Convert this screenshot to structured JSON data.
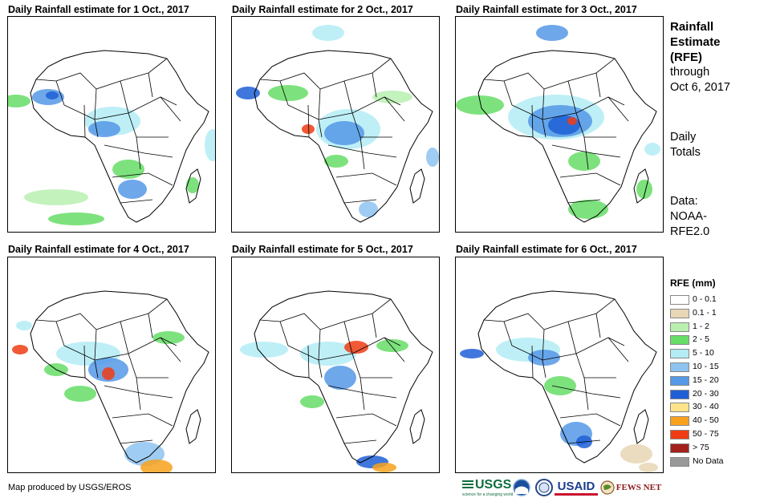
{
  "panels": [
    {
      "title": "Daily Rainfall estimate for 1 Oct., 2017"
    },
    {
      "title": "Daily Rainfall estimate for 2 Oct., 2017"
    },
    {
      "title": "Daily Rainfall estimate for 3 Oct., 2017"
    },
    {
      "title": "Daily Rainfall estimate for 4 Oct., 2017"
    },
    {
      "title": "Daily Rainfall estimate for 5 Oct., 2017"
    },
    {
      "title": "Daily Rainfall estimate for 6 Oct., 2017"
    }
  ],
  "side": {
    "title_line1": "Rainfall",
    "title_line2": "Estimate",
    "title_line3": "(RFE)",
    "through_line1": "through",
    "through_line2": "Oct 6, 2017",
    "totals_line1": "Daily",
    "totals_line2": "Totals",
    "data_line1": "Data:",
    "data_line2": "NOAA-",
    "data_line3": "RFE2.0"
  },
  "legend": {
    "title": "RFE (mm)",
    "items": [
      {
        "label": "0 - 0.1",
        "color": "#ffffff"
      },
      {
        "label": "0.1 - 1",
        "color": "#e8d6b4"
      },
      {
        "label": "1 - 2",
        "color": "#b9f0b0"
      },
      {
        "label": "2 - 5",
        "color": "#66dd66"
      },
      {
        "label": "5 - 10",
        "color": "#b3ecf5"
      },
      {
        "label": "10 - 15",
        "color": "#8ec3f0"
      },
      {
        "label": "15 - 20",
        "color": "#5598e6"
      },
      {
        "label": "20 - 30",
        "color": "#1f5fd6"
      },
      {
        "label": "30 - 40",
        "color": "#fde48a"
      },
      {
        "label": "40 - 50",
        "color": "#f8a11c"
      },
      {
        "label": "50 - 75",
        "color": "#f03c14"
      },
      {
        "label": "> 75",
        "color": "#a3201c"
      },
      {
        "label": "No Data",
        "color": "#999999"
      }
    ]
  },
  "credit": "Map produced by USGS/EROS",
  "logos": {
    "usgs": "USGS",
    "usgs_tagline": "science for a changing world",
    "usaid": "USAID",
    "fewsnet": "FEWS NET"
  }
}
